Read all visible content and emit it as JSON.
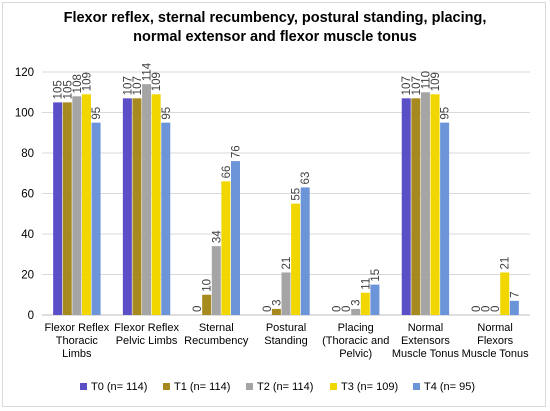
{
  "chart_data": {
    "type": "bar",
    "title": [
      "Flexor reflex, sternal recumbency, postural standing, placing,",
      "normal extensor and flexor muscle tonus"
    ],
    "xlabel": "",
    "ylabel": "",
    "ylim": [
      0,
      120
    ],
    "yticks": [
      0,
      20,
      40,
      60,
      80,
      100,
      120
    ],
    "grid": true,
    "legend_position": "bottom",
    "categories": [
      [
        "Flexor Reflex",
        "Thoracic",
        "Limbs"
      ],
      [
        "Flexor Reflex",
        "Pelvic Limbs"
      ],
      [
        "Sternal",
        "Recumbency"
      ],
      [
        "Postural",
        "Standing"
      ],
      [
        "Placing",
        "(Thoracic and",
        "Pelvic)"
      ],
      [
        "Normal",
        "Extensors",
        "Muscle Tonus"
      ],
      [
        "Normal",
        "Flexors",
        "Muscle Tonus"
      ]
    ],
    "series": [
      {
        "name": "T0 (n= 114)",
        "color": "#5b4fc7",
        "values": [
          105,
          107,
          0,
          0,
          0,
          107,
          0
        ]
      },
      {
        "name": "T1 (n= 114)",
        "color": "#a6891f",
        "values": [
          105,
          107,
          10,
          3,
          0,
          107,
          0
        ]
      },
      {
        "name": "T2 (n= 114)",
        "color": "#a5a5a5",
        "values": [
          108,
          114,
          34,
          21,
          3,
          110,
          0
        ]
      },
      {
        "name": "T3 (n= 109)",
        "color": "#f2d600",
        "values": [
          109,
          109,
          66,
          55,
          11,
          109,
          21
        ]
      },
      {
        "name": "T4 (n= 95)",
        "color": "#6c94d9",
        "values": [
          95,
          95,
          76,
          63,
          15,
          95,
          7
        ]
      }
    ]
  }
}
